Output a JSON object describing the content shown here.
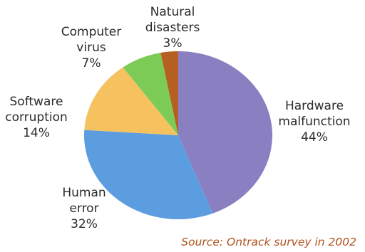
{
  "chart_data": {
    "type": "pie",
    "slices": [
      {
        "label_lines": [
          "Hardware",
          "malfunction"
        ],
        "value_label": "44%",
        "value": 44,
        "color": "#8a7fc0"
      },
      {
        "label_lines": [
          "Human",
          "error"
        ],
        "value_label": "32%",
        "value": 32,
        "color": "#5c9de0"
      },
      {
        "label_lines": [
          "Software",
          "corruption"
        ],
        "value_label": "14%",
        "value": 14,
        "color": "#f5c25f"
      },
      {
        "label_lines": [
          "Computer",
          "virus"
        ],
        "value_label": "7%",
        "value": 7,
        "color": "#7ccb57"
      },
      {
        "label_lines": [
          "Natural",
          "disasters"
        ],
        "value_label": "3%",
        "value": 3,
        "color": "#b65f22"
      }
    ],
    "start_angle_deg": 0,
    "direction": "clockwise",
    "source": "Source: Ontrack survey in 2002"
  }
}
